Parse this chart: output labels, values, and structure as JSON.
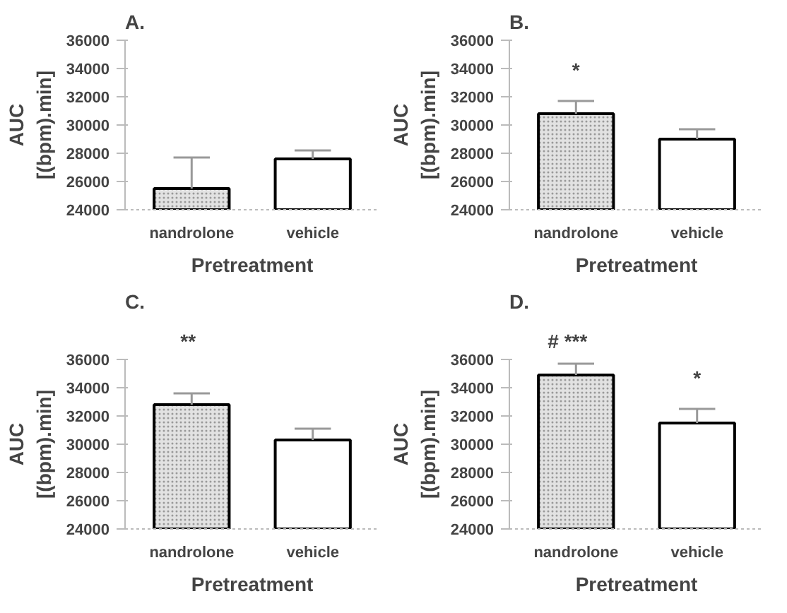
{
  "chart_data": [
    {
      "type": "bar",
      "title": "A.",
      "xlabel": "Pretreatment",
      "ylabel": "AUC\n[(bpm).min]",
      "categories": [
        "nandrolone",
        "vehicle"
      ],
      "values": [
        25500,
        27600
      ],
      "colors": [
        "#e2e2e2",
        "#ffffff"
      ],
      "errors": [
        [
          25500,
          27700
        ],
        [
          27600,
          28200
        ]
      ],
      "ylim": [
        24000,
        36000
      ],
      "yticks": [
        24000,
        26000,
        28000,
        30000,
        32000,
        34000,
        36000
      ]
    },
    {
      "type": "bar",
      "title": "B.",
      "xlabel": "Pretreatment",
      "ylabel": "AUC\n[(bpm).min]",
      "categories": [
        "nandrolone",
        "vehicle"
      ],
      "values": [
        30800,
        29000
      ],
      "colors": [
        "#e2e2e2",
        "#ffffff"
      ],
      "errors": [
        [
          30800,
          31700
        ],
        [
          29000,
          29700
        ]
      ],
      "ylim": [
        24000,
        36000
      ],
      "yticks": [
        24000,
        26000,
        28000,
        30000,
        32000,
        34000,
        36000
      ],
      "annotations": [
        "*"
      ]
    },
    {
      "type": "bar",
      "title": "C.",
      "xlabel": "Pretreatment",
      "ylabel": "AUC\n[(bpm).min]",
      "categories": [
        "nandrolone",
        "vehicle"
      ],
      "values": [
        32800,
        30300
      ],
      "colors": [
        "#e2e2e2",
        "#ffffff"
      ],
      "errors": [
        [
          32800,
          33600
        ],
        [
          30300,
          31100
        ]
      ],
      "ylim": [
        24000,
        36000
      ],
      "yticks": [
        24000,
        26000,
        28000,
        30000,
        32000,
        34000,
        36000
      ],
      "annotations": [
        "**"
      ]
    },
    {
      "type": "bar",
      "title": "D.",
      "xlabel": "Pretreatment",
      "ylabel": "AUC\n[(bpm).min]",
      "categories": [
        "nandrolone",
        "vehicle"
      ],
      "values": [
        34900,
        31500
      ],
      "colors": [
        "#e2e2e2",
        "#ffffff"
      ],
      "errors": [
        [
          34900,
          35700
        ],
        [
          31500,
          32500
        ]
      ],
      "ylim": [
        24000,
        36000
      ],
      "yticks": [
        24000,
        26000,
        28000,
        30000,
        32000,
        34000,
        36000
      ],
      "annotations": [
        "# ***",
        "*"
      ]
    }
  ]
}
